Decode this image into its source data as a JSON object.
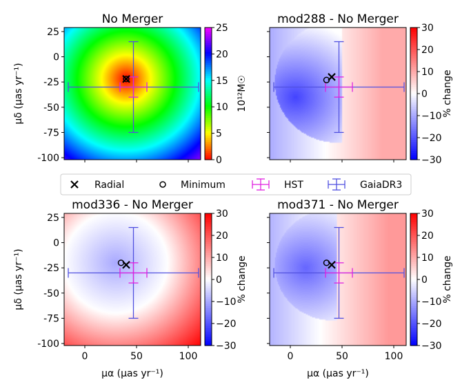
{
  "chart_data": [
    {
      "type": "heatmap",
      "title": "No Merger",
      "xlabel": "",
      "ylabel": "μδ (μas yr⁻¹)",
      "xlim": [
        -20,
        112
      ],
      "ylim": [
        -102,
        29
      ],
      "colormap": "gist_rainbow",
      "colorbar": {
        "label": "10¹²M☉",
        "range": [
          0,
          25
        ],
        "ticks": [
          0,
          5,
          10,
          15,
          20,
          25
        ]
      },
      "field": {
        "kind": "radial",
        "center": [
          40,
          -22
        ],
        "max_distance": 118
      },
      "markers": {
        "radial": [
          40,
          -22
        ],
        "minimum": [
          40,
          -22
        ]
      },
      "error_bars": {
        "HST": {
          "center": [
            47,
            -30
          ],
          "x_range": [
            34,
            60
          ],
          "y_range": [
            -40,
            -20
          ],
          "color": "#e020e0"
        },
        "GaiaDR3": {
          "center": [
            47,
            -30
          ],
          "x_range": [
            -16,
            110
          ],
          "y_range": [
            -75,
            15
          ],
          "color": "#5050e0"
        }
      },
      "xticks": [
        0,
        50,
        100
      ],
      "yticks": [
        25,
        0,
        -25,
        -50,
        -75,
        -100
      ],
      "show_xticklabels": false,
      "show_yticklabels": true
    },
    {
      "type": "heatmap",
      "title": "mod288 - No Merger",
      "xlabel": "",
      "ylabel": "",
      "xlim": [
        -20,
        112
      ],
      "ylim": [
        -102,
        29
      ],
      "colormap": "bwr",
      "colorbar": {
        "label": "% change",
        "range": [
          -30,
          30
        ],
        "ticks": [
          30,
          20,
          10,
          0,
          -10,
          -20,
          -30
        ]
      },
      "field": {
        "kind": "dipole",
        "low_center": [
          5,
          -40
        ],
        "low_value": -22,
        "boundary_center": [
          45,
          -25
        ],
        "boundary_radius": 55,
        "high_value": 10
      },
      "markers": {
        "radial": [
          40,
          -20
        ],
        "minimum": [
          35,
          -23
        ]
      },
      "error_bars": {
        "HST": {
          "center": [
            47,
            -30
          ],
          "x_range": [
            34,
            60
          ],
          "y_range": [
            -40,
            -20
          ],
          "color": "#e020e0"
        },
        "GaiaDR3": {
          "center": [
            47,
            -30
          ],
          "x_range": [
            -16,
            110
          ],
          "y_range": [
            -75,
            15
          ],
          "color": "#5050e0"
        }
      },
      "xticks": [
        0,
        50,
        100
      ],
      "yticks": [
        25,
        0,
        -25,
        -50,
        -75,
        -100
      ],
      "show_xticklabels": false,
      "show_yticklabels": false
    },
    {
      "type": "heatmap",
      "title": "mod336 - No Merger",
      "xlabel": "μα (μas yr⁻¹)",
      "ylabel": "μδ (μas yr⁻¹)",
      "xlim": [
        -20,
        112
      ],
      "ylim": [
        -102,
        29
      ],
      "colormap": "bwr",
      "colorbar": {
        "label": "% change",
        "range": [
          -30,
          30
        ],
        "ticks": [
          30,
          20,
          10,
          0,
          -10,
          -20,
          -30
        ]
      },
      "field": {
        "kind": "radial_signed",
        "center": [
          30,
          -20
        ],
        "low_value": -10,
        "zero_radius": 50,
        "high_value": 30
      },
      "markers": {
        "radial": [
          40,
          -22
        ],
        "minimum": [
          35,
          -20
        ]
      },
      "error_bars": {
        "HST": {
          "center": [
            47,
            -30
          ],
          "x_range": [
            34,
            60
          ],
          "y_range": [
            -40,
            -20
          ],
          "color": "#e020e0"
        },
        "GaiaDR3": {
          "center": [
            47,
            -30
          ],
          "x_range": [
            -16,
            110
          ],
          "y_range": [
            -75,
            15
          ],
          "color": "#5050e0"
        }
      },
      "xticks": [
        0,
        50,
        100
      ],
      "yticks": [
        25,
        0,
        -25,
        -50,
        -75,
        -100
      ],
      "show_xticklabels": true,
      "show_yticklabels": true
    },
    {
      "type": "heatmap",
      "title": "mod371 - No Merger",
      "xlabel": "μα (μas yr⁻¹)",
      "ylabel": "",
      "xlim": [
        -20,
        112
      ],
      "ylim": [
        -102,
        29
      ],
      "colormap": "bwr",
      "colorbar": {
        "label": "% change",
        "range": [
          -30,
          30
        ],
        "ticks": [
          30,
          20,
          10,
          0,
          -10,
          -20,
          -30
        ]
      },
      "field": {
        "kind": "dipole",
        "low_center": [
          15,
          -25
        ],
        "low_value": -18,
        "boundary_center": [
          40,
          -22
        ],
        "boundary_radius": 50,
        "high_value": 12
      },
      "markers": {
        "radial": [
          40,
          -22
        ],
        "minimum": [
          35,
          -20
        ]
      },
      "error_bars": {
        "HST": {
          "center": [
            47,
            -30
          ],
          "x_range": [
            34,
            60
          ],
          "y_range": [
            -40,
            -20
          ],
          "color": "#e020e0"
        },
        "GaiaDR3": {
          "center": [
            47,
            -30
          ],
          "x_range": [
            -16,
            110
          ],
          "y_range": [
            -75,
            15
          ],
          "color": "#5050e0"
        }
      },
      "xticks": [
        0,
        50,
        100
      ],
      "yticks": [
        25,
        0,
        -25,
        -50,
        -75,
        -100
      ],
      "show_xticklabels": true,
      "show_yticklabels": false
    }
  ],
  "legend": {
    "placement": "center",
    "entries": [
      {
        "label": "Radial",
        "marker": "x",
        "color": "#000000"
      },
      {
        "label": "Minimum",
        "marker": "o",
        "color": "#000000"
      },
      {
        "label": "HST",
        "marker": "errorbar",
        "color": "#e020e0"
      },
      {
        "label": "GaiaDR3",
        "marker": "errorbar",
        "color": "#5050e0"
      }
    ]
  }
}
